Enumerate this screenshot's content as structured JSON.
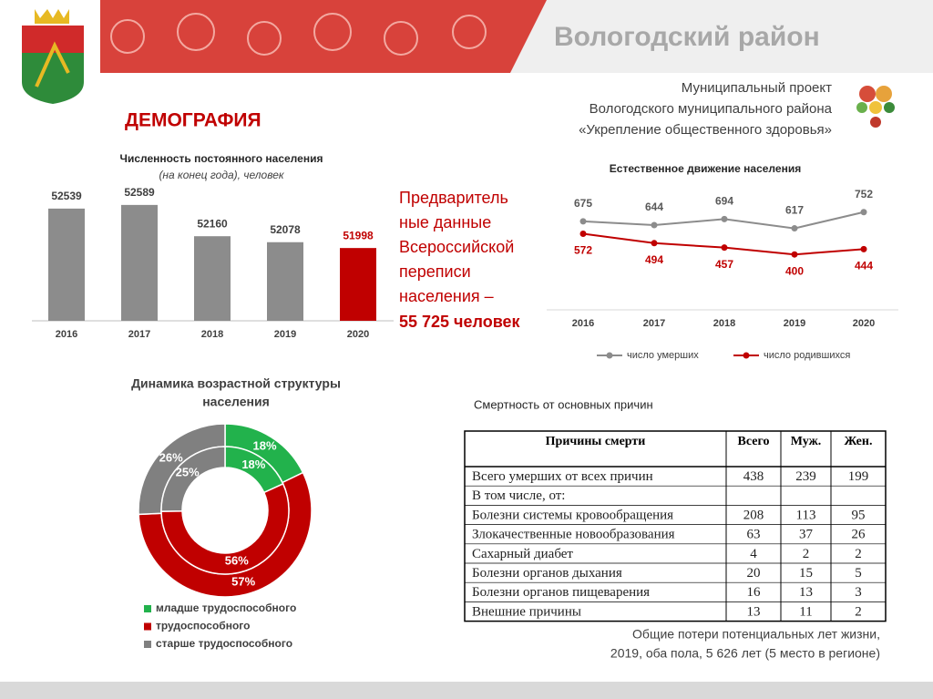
{
  "header": {
    "region": "Вологодский район",
    "project": [
      "Муниципальный проект",
      "Вологодского муниципального района",
      "«Укрепление общественного здоровья»"
    ],
    "section": "ДЕМОГРАФИЯ"
  },
  "census_note": [
    "Предваритель",
    "ные данные",
    "Всероссийской",
    "переписи",
    "населения –",
    "55 725 человек"
  ],
  "chart_data": [
    {
      "type": "bar",
      "title": "Численность постоянного населения",
      "subtitle": "(на конец года), человек",
      "categories": [
        "2016",
        "2017",
        "2018",
        "2019",
        "2020"
      ],
      "values": [
        52539,
        52589,
        52160,
        52078,
        51998
      ],
      "colors": [
        "#8c8c8c",
        "#8c8c8c",
        "#8c8c8c",
        "#8c8c8c",
        "#c00000"
      ],
      "ylim": [
        51000,
        52700
      ]
    },
    {
      "type": "line",
      "title": "Естественное движение населения",
      "categories": [
        "2016",
        "2017",
        "2018",
        "2019",
        "2020"
      ],
      "series": [
        {
          "name": "число умерших",
          "color": "#8c8c8c",
          "values": [
            675,
            644,
            694,
            617,
            752
          ]
        },
        {
          "name": "число родившихся",
          "color": "#c00000",
          "values": [
            572,
            494,
            457,
            400,
            444
          ]
        }
      ],
      "ylim": [
        0,
        1000
      ]
    },
    {
      "type": "donut",
      "title": [
        "Динамика возрастной структуры",
        "населения"
      ],
      "categories": [
        "младше трудоспособного",
        "трудоспособного",
        "старше трудоспособного"
      ],
      "colors": [
        "#22b24c",
        "#c00000",
        "#808080"
      ],
      "series": [
        {
          "values": [
            18,
            57,
            26
          ]
        },
        {
          "values": [
            18,
            56,
            25
          ]
        }
      ]
    }
  ],
  "table": {
    "caption": "Смертность от основных причин",
    "header": [
      "Причины смерти",
      "Всего",
      "Муж.",
      "Жен."
    ],
    "rows": [
      [
        "Всего умерших от всех причин",
        438,
        239,
        199
      ],
      [
        "В том числе, от:"
      ],
      [
        "Болезни системы кровообращения",
        208,
        113,
        95
      ],
      [
        "Злокачественные новообразования",
        63,
        37,
        26
      ],
      [
        "Сахарный диабет",
        4,
        2,
        2
      ],
      [
        "Болезни органов дыхания",
        20,
        15,
        5
      ],
      [
        "Болезни органов пищеварения",
        16,
        13,
        3
      ],
      [
        "Внешние причины",
        13,
        11,
        2
      ]
    ]
  },
  "footnote": [
    "Общие потери потенциальных лет жизни,",
    "2019, оба пола, 5 626  лет (5 место в регионе)"
  ]
}
